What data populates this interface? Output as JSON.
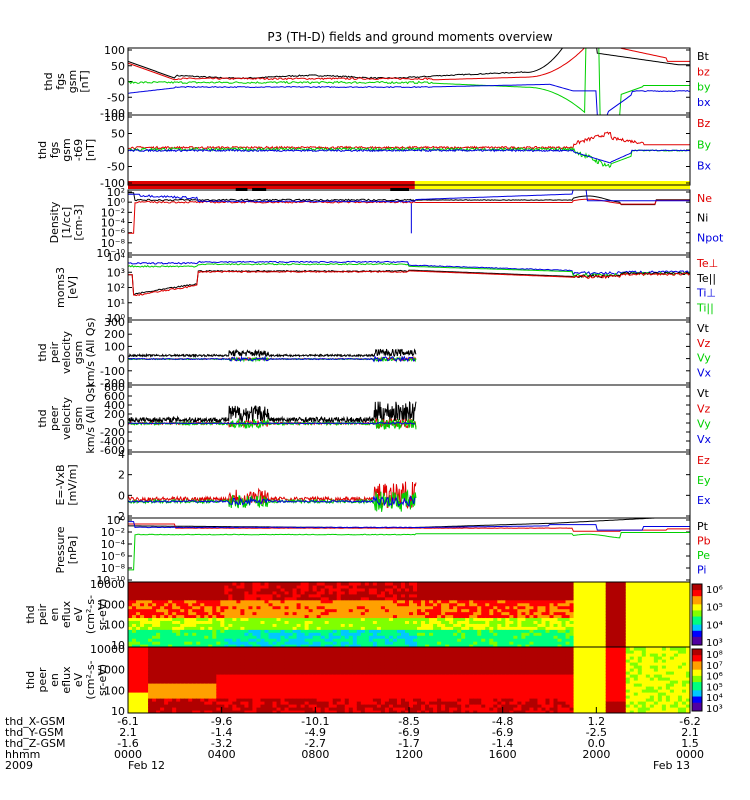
{
  "title": "P3 (TH-D) fields and ground moments overview",
  "colors": {
    "black": "#000000",
    "red": "#e00000",
    "green": "#00d000",
    "blue": "#0000e0",
    "yellow": "#ffff00",
    "axis": "#000000"
  },
  "bars": {
    "red_until": 12.25
  },
  "chart_data": [
    {
      "type": "line",
      "ylabel": [
        "thd",
        "fgs",
        "gsm",
        "[nT]"
      ],
      "ylim": [
        -100,
        100
      ],
      "yticks": [
        "100",
        "50",
        "0",
        "-50",
        "-100"
      ],
      "legend": [
        {
          "name": "Bt",
          "color": "#000000"
        },
        {
          "name": "bz",
          "color": "#e00000"
        },
        {
          "name": "by",
          "color": "#00d000"
        },
        {
          "name": "bx",
          "color": "#0000e0"
        }
      ]
    },
    {
      "type": "line",
      "ylabel": [
        "thd",
        "fgs",
        "gsm",
        "-t69",
        "[nT]"
      ],
      "ylim": [
        -100,
        100
      ],
      "yticks": [
        "100",
        "50",
        "0",
        "-50",
        "-100"
      ],
      "legend": [
        {
          "name": "Bz",
          "color": "#e00000"
        },
        {
          "name": "By",
          "color": "#00d000"
        },
        {
          "name": "Bx",
          "color": "#0000e0"
        }
      ]
    },
    {
      "type": "line",
      "ylabel": [
        "Density",
        "[1/cc]",
        "[cm-3]"
      ],
      "scale": "log",
      "yticks": [
        "10²",
        "10⁰",
        "10⁻²",
        "10⁻⁴",
        "10⁻⁶",
        "10⁻⁸",
        "10⁻¹⁰"
      ],
      "legend": [
        {
          "name": "Ne",
          "color": "#e00000"
        },
        {
          "name": "Ni",
          "color": "#000000"
        },
        {
          "name": "Npot",
          "color": "#0000e0"
        }
      ]
    },
    {
      "type": "line",
      "ylabel": [
        "moms3",
        "[eV]"
      ],
      "scale": "log",
      "yticks": [
        "10⁴",
        "10³",
        "10²",
        "10¹",
        "10⁰"
      ],
      "legend": [
        {
          "name": "Te⊥",
          "color": "#e00000"
        },
        {
          "name": "Te||",
          "color": "#000000"
        },
        {
          "name": "Ti⊥",
          "color": "#0000e0"
        },
        {
          "name": "Ti||",
          "color": "#00d000"
        }
      ]
    },
    {
      "type": "line",
      "ylabel": [
        "thd",
        "peir",
        "velocity",
        "gsm",
        "km/s (All Qs)"
      ],
      "ylim": [
        -200,
        300
      ],
      "yticks": [
        "300",
        "200",
        "100",
        "0",
        "-100",
        "-200"
      ],
      "legend": [
        {
          "name": "Vt",
          "color": "#000000"
        },
        {
          "name": "Vz",
          "color": "#e00000"
        },
        {
          "name": "Vy",
          "color": "#00d000"
        },
        {
          "name": "Vx",
          "color": "#0000e0"
        }
      ]
    },
    {
      "type": "line",
      "ylabel": [
        "thd",
        "peer",
        "velocity",
        "gsm",
        "km/s (All Qs)"
      ],
      "ylim": [
        -600,
        800
      ],
      "yticks": [
        "800",
        "600",
        "400",
        "200",
        "0",
        "-200",
        "-400",
        "-600"
      ],
      "legend": [
        {
          "name": "Vt",
          "color": "#000000"
        },
        {
          "name": "Vz",
          "color": "#e00000"
        },
        {
          "name": "Vy",
          "color": "#00d000"
        },
        {
          "name": "Vx",
          "color": "#0000e0"
        }
      ]
    },
    {
      "type": "line",
      "ylabel": [
        "E=-VxB",
        "[mV/m]"
      ],
      "ylim": [
        -2,
        6
      ],
      "yticks": [
        "4",
        "2",
        "0",
        "-2"
      ],
      "legend": [
        {
          "name": "Ez",
          "color": "#e00000"
        },
        {
          "name": "Ey",
          "color": "#00d000"
        },
        {
          "name": "Ex",
          "color": "#0000e0"
        }
      ]
    },
    {
      "type": "line",
      "ylabel": [
        "Pressure",
        "[nPa]"
      ],
      "scale": "log",
      "yticks": [
        "10⁰",
        "10⁻²",
        "10⁻⁴",
        "10⁻⁶",
        "10⁻⁸",
        "10⁻¹⁰"
      ],
      "legend": [
        {
          "name": "Pt",
          "color": "#000000"
        },
        {
          "name": "Pb",
          "color": "#e00000"
        },
        {
          "name": "Pe",
          "color": "#00d000"
        },
        {
          "name": "Pi",
          "color": "#0000e0"
        }
      ]
    },
    {
      "type": "heatmap",
      "ylabel": [
        "thd",
        "peir",
        "en",
        "eflux",
        "eV",
        "(cm²-s-",
        "sr-eV)"
      ],
      "scale": "log",
      "yticks": [
        "10000",
        "1000",
        "100",
        "10"
      ],
      "colorbar": [
        "10⁶",
        "10⁵",
        "10⁴",
        "10³"
      ]
    },
    {
      "type": "heatmap",
      "ylabel": [
        "thd",
        "peer",
        "en",
        "eflux",
        "eV",
        "(cm²-s-",
        "sr-eV)"
      ],
      "scale": "log",
      "yticks": [
        "10000",
        "1000",
        "100",
        "10"
      ],
      "colorbar": [
        "10⁸",
        "10⁷",
        "10⁶",
        "10⁵",
        "10⁴",
        "10³"
      ]
    }
  ],
  "xaxis": {
    "row_labels": [
      "thd_X-GSM",
      "thd_Y-GSM",
      "thd_Z-GSM",
      "hhmm",
      "2009"
    ],
    "columns": [
      {
        "v": [
          "-6.1",
          "2.1",
          "-1.6",
          "0000",
          "Feb 12"
        ]
      },
      {
        "v": [
          "-9.6",
          "-1.4",
          "-3.2",
          "0400",
          ""
        ]
      },
      {
        "v": [
          "-10.1",
          "-4.9",
          "-2.7",
          "0800",
          ""
        ]
      },
      {
        "v": [
          "-8.5",
          "-6.9",
          "-1.7",
          "1200",
          ""
        ]
      },
      {
        "v": [
          "-4.8",
          "-6.9",
          "-1.4",
          "1600",
          ""
        ]
      },
      {
        "v": [
          "1.2",
          "-2.5",
          "0.0",
          "2000",
          ""
        ]
      },
      {
        "v": [
          "-6.2",
          "2.1",
          "1.5",
          "0000",
          "Feb 13"
        ]
      }
    ]
  }
}
